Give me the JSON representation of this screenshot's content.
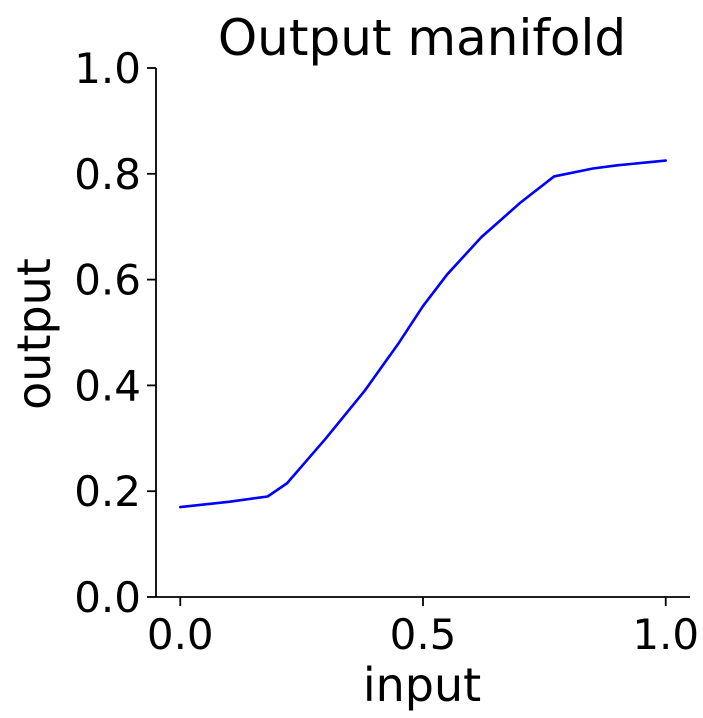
{
  "chart_data": {
    "type": "line",
    "title": "Output manifold",
    "xlabel": "input",
    "ylabel": "output",
    "xlim": [
      -0.05,
      1.05
    ],
    "ylim": [
      0.0,
      1.0
    ],
    "xticks": [
      0.0,
      0.5,
      1.0
    ],
    "xtick_labels": [
      "0.0",
      "0.5",
      "1.0"
    ],
    "yticks": [
      0.0,
      0.2,
      0.4,
      0.6,
      0.8,
      1.0
    ],
    "ytick_labels": [
      "0.0",
      "0.2",
      "0.4",
      "0.6",
      "0.8",
      "1.0"
    ],
    "grid": false,
    "legend": "none",
    "color": "#0000ff",
    "series": [
      {
        "x": [
          0.0,
          0.1,
          0.18,
          0.22,
          0.3,
          0.38,
          0.45,
          0.5,
          0.55,
          0.62,
          0.7,
          0.77,
          0.85,
          0.9,
          1.0
        ],
        "y": [
          0.17,
          0.18,
          0.19,
          0.215,
          0.3,
          0.39,
          0.48,
          0.55,
          0.61,
          0.68,
          0.745,
          0.795,
          0.81,
          0.816,
          0.825
        ]
      }
    ]
  }
}
